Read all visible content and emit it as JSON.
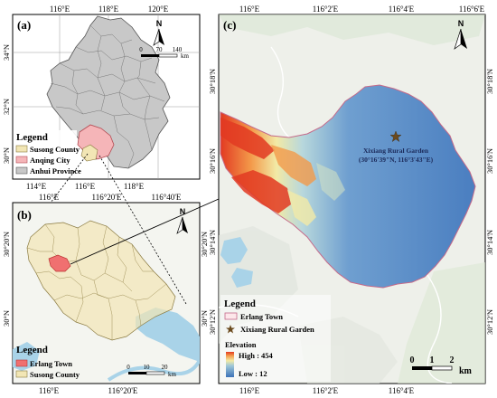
{
  "panels": {
    "a": {
      "label": "(a)",
      "top_ticks": [
        "116°E",
        "118°E",
        "120°E"
      ],
      "bottom_ticks": [
        "114°E",
        "116°E",
        "118°E"
      ],
      "left_ticks": [
        "34°N",
        "32°N",
        "30°N"
      ],
      "north": "N",
      "scalebar": {
        "ticks": [
          "0",
          "70",
          "140"
        ],
        "unit": "km"
      },
      "legend": {
        "title": "Legend",
        "items": [
          {
            "label": "Susong County",
            "color": "#f2e6b5"
          },
          {
            "label": "Anqing City",
            "color": "#f5b5b8"
          },
          {
            "label": "Anhui Province",
            "color": "#c8c8c8"
          }
        ]
      }
    },
    "b": {
      "label": "(b)",
      "top_ticks": [
        "116°E",
        "116°20'E",
        "116°40'E"
      ],
      "bottom_ticks": [
        "116°E",
        "116°20'E"
      ],
      "left_ticks": [
        "30°20'N",
        "30°N"
      ],
      "right_ticks": [
        "30°20'N",
        "30°N"
      ],
      "north": "N",
      "scalebar": {
        "ticks": [
          "0",
          "10",
          "20"
        ],
        "unit": "km"
      },
      "legend": {
        "title": "Legend",
        "items": [
          {
            "label": "Erlang Town",
            "color": "#f07070"
          },
          {
            "label": "Susong County",
            "color": "#f2e6b5"
          }
        ]
      }
    },
    "c": {
      "label": "(c)",
      "top_ticks": [
        "116°E",
        "116°2'E",
        "116°4'E",
        "116°6'E"
      ],
      "bottom_ticks": [
        "116°E",
        "116°2'E",
        "116°4'E"
      ],
      "left_ticks": [
        "30°18'N",
        "30°16'N",
        "30°14'N",
        "30°12'N"
      ],
      "right_ticks": [
        "30°18'N",
        "30°16'N",
        "30°14'N",
        "30°12'N"
      ],
      "north": "N",
      "garden_label": "Xixiang Rural Garden",
      "garden_coords": "(30°16'39\"N, 116°3'43\"E)",
      "scalebar": {
        "ticks": [
          "0",
          "1",
          "2"
        ],
        "unit": "km"
      },
      "legend": {
        "title": "Legend",
        "items": [
          {
            "label": "Erlang Town"
          },
          {
            "label": "Xixiang Rural Garden"
          }
        ],
        "elevation_title": "Elevation",
        "high": "High : 454",
        "low": "Low : 12"
      }
    }
  },
  "colors": {
    "anhui": "#c8c8c8",
    "anqing": "#f5b5b8",
    "susong": "#f2e6b5",
    "erlang": "#f07070",
    "water": "#a9d3e8",
    "terrain": "#eef0ea",
    "elev_high": "#e23a22",
    "elev_mid": "#f2eaa6",
    "elev_low": "#3d72b8"
  }
}
